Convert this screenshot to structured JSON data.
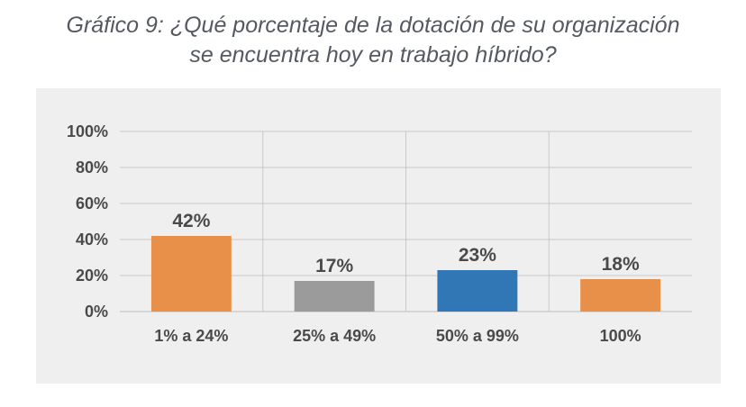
{
  "chart_data": {
    "type": "bar",
    "title": "Gráfico 9: ¿Qué porcentaje de la dotación de su organización",
    "subtitle": "se encuentra hoy en trabajo híbrido?",
    "categories": [
      "1% a 24%",
      "25% a 49%",
      "50% a 99%",
      "100%"
    ],
    "values": [
      42,
      17,
      23,
      18
    ],
    "data_labels": [
      "42%",
      "17%",
      "23%",
      "18%"
    ],
    "colors": [
      "#e8904a",
      "#9b9b9b",
      "#3277b5",
      "#e8904a"
    ],
    "ylim": [
      0,
      100
    ],
    "yticks": [
      0,
      20,
      40,
      60,
      80,
      100
    ],
    "ytick_labels": [
      "0%",
      "20%",
      "40%",
      "60%",
      "80%",
      "100%"
    ],
    "grid": true,
    "legend": "none",
    "xlabel": "",
    "ylabel": ""
  }
}
